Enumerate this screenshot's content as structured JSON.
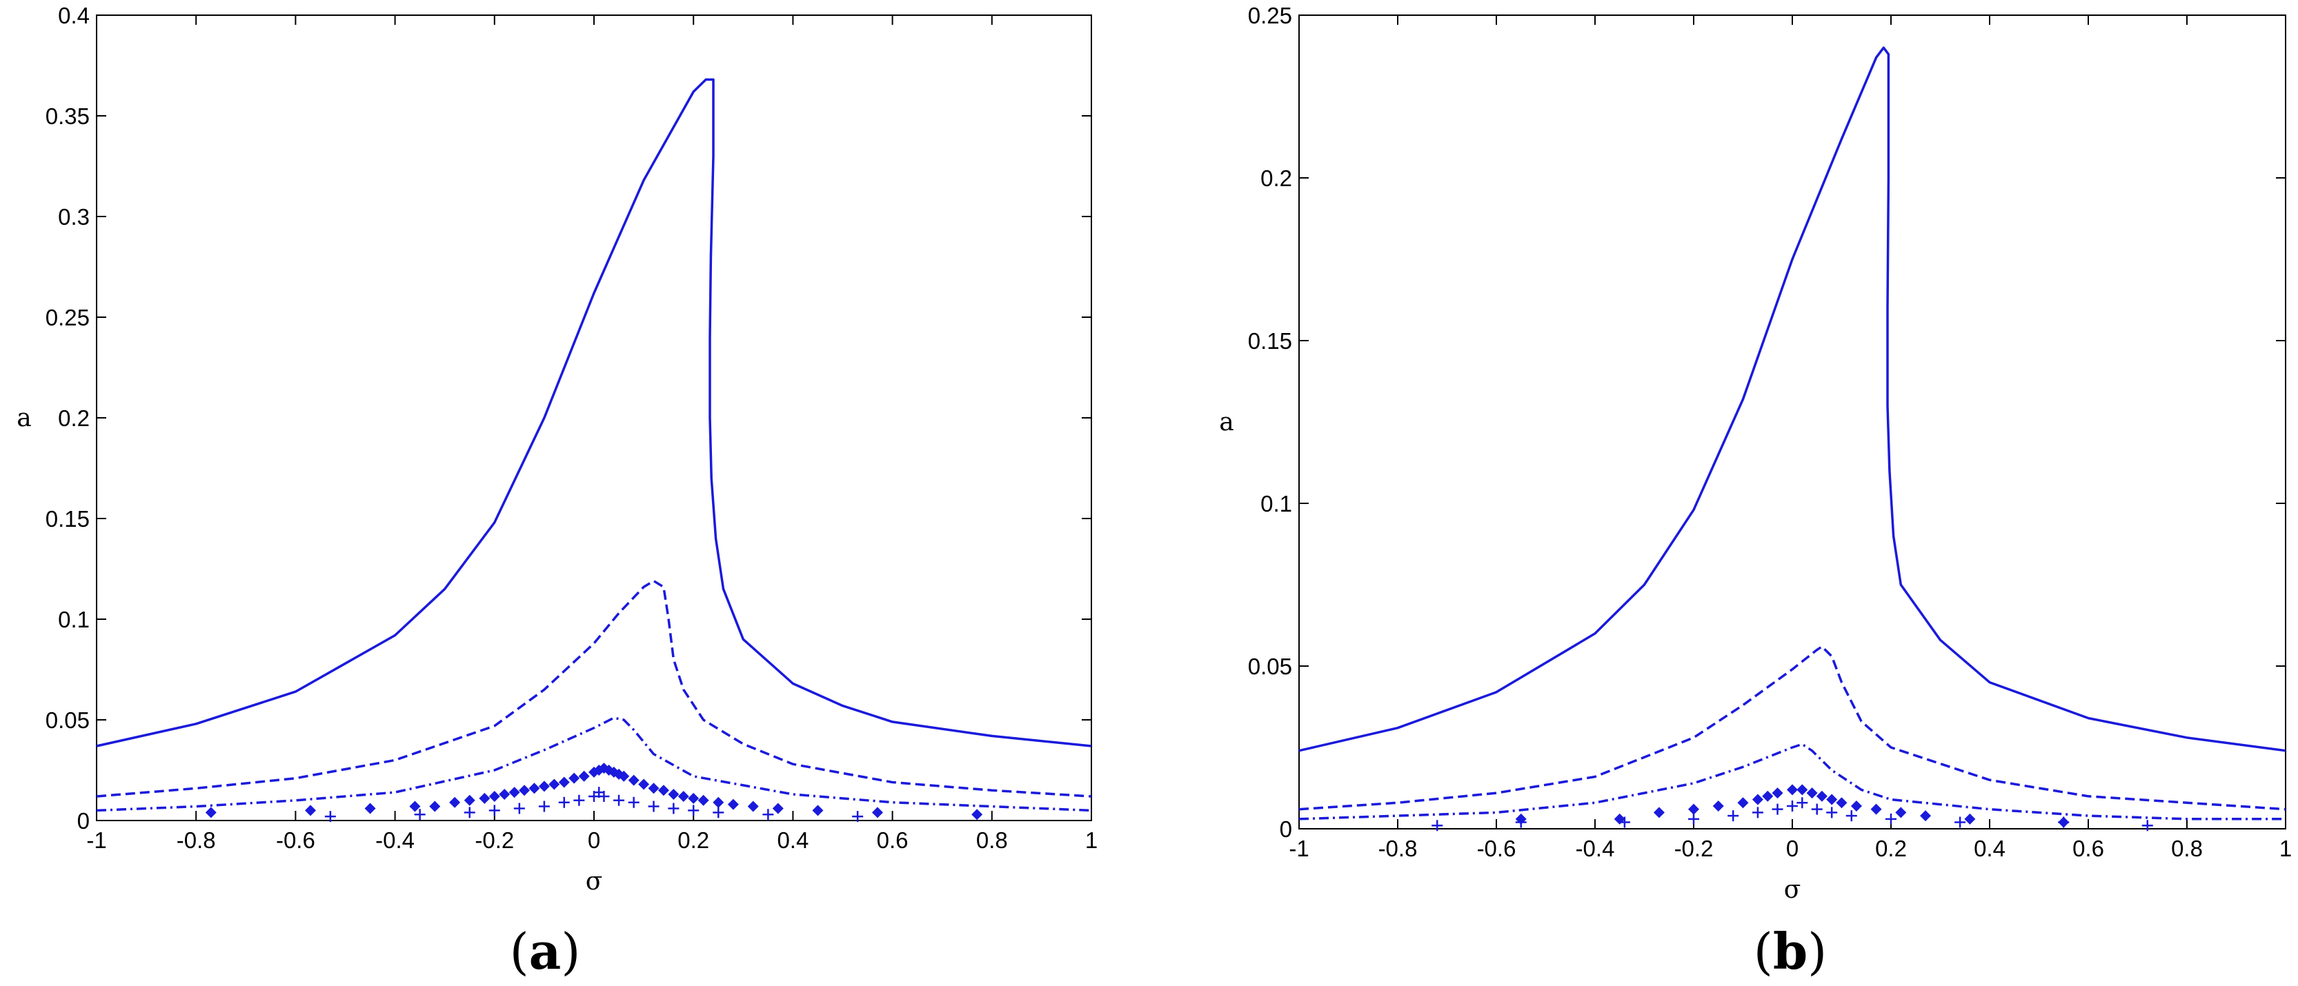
{
  "chart_data": [
    {
      "type": "line",
      "panel_label": {
        "open": "(",
        "letter": "a",
        "close": ")"
      },
      "xlabel": "σ",
      "ylabel": "a",
      "xlim": [
        -1,
        1
      ],
      "ylim": [
        0,
        0.4
      ],
      "xticks": [
        "-1",
        "-0.8",
        "-0.6",
        "-0.4",
        "-0.2",
        "0",
        "0.2",
        "0.4",
        "0.6",
        "0.8",
        "1"
      ],
      "yticks": [
        "0",
        "0.05",
        "0.1",
        "0.15",
        "0.2",
        "0.25",
        "0.3",
        "0.35",
        "0.4"
      ],
      "color": "#1a1adc",
      "series": [
        {
          "style": "solid",
          "points": [
            [
              -1,
              0.037
            ],
            [
              -0.8,
              0.048
            ],
            [
              -0.6,
              0.064
            ],
            [
              -0.4,
              0.092
            ],
            [
              -0.3,
              0.115
            ],
            [
              -0.2,
              0.148
            ],
            [
              -0.1,
              0.2
            ],
            [
              0,
              0.262
            ],
            [
              0.1,
              0.318
            ],
            [
              0.2,
              0.362
            ],
            [
              0.225,
              0.368
            ],
            [
              0.24,
              0.368
            ],
            [
              0.24,
              0.33
            ],
            [
              0.235,
              0.28
            ],
            [
              0.233,
              0.24
            ],
            [
              0.233,
              0.2
            ],
            [
              0.236,
              0.17
            ],
            [
              0.245,
              0.14
            ],
            [
              0.26,
              0.115
            ],
            [
              0.3,
              0.09
            ],
            [
              0.4,
              0.068
            ],
            [
              0.5,
              0.057
            ],
            [
              0.6,
              0.049
            ],
            [
              0.8,
              0.042
            ],
            [
              1,
              0.037
            ]
          ]
        },
        {
          "style": "dashed",
          "points": [
            [
              -1,
              0.012
            ],
            [
              -0.8,
              0.016
            ],
            [
              -0.6,
              0.021
            ],
            [
              -0.4,
              0.03
            ],
            [
              -0.2,
              0.047
            ],
            [
              -0.1,
              0.065
            ],
            [
              0,
              0.088
            ],
            [
              0.05,
              0.103
            ],
            [
              0.1,
              0.116
            ],
            [
              0.12,
              0.119
            ],
            [
              0.14,
              0.116
            ],
            [
              0.15,
              0.1
            ],
            [
              0.16,
              0.08
            ],
            [
              0.18,
              0.065
            ],
            [
              0.22,
              0.05
            ],
            [
              0.3,
              0.038
            ],
            [
              0.4,
              0.028
            ],
            [
              0.6,
              0.019
            ],
            [
              0.8,
              0.015
            ],
            [
              1,
              0.012
            ]
          ]
        },
        {
          "style": "dashdot",
          "points": [
            [
              -1,
              0.005
            ],
            [
              -0.8,
              0.007
            ],
            [
              -0.6,
              0.01
            ],
            [
              -0.4,
              0.014
            ],
            [
              -0.2,
              0.025
            ],
            [
              -0.1,
              0.035
            ],
            [
              0,
              0.046
            ],
            [
              0.04,
              0.051
            ],
            [
              0.06,
              0.05
            ],
            [
              0.08,
              0.045
            ],
            [
              0.12,
              0.033
            ],
            [
              0.2,
              0.022
            ],
            [
              0.4,
              0.013
            ],
            [
              0.6,
              0.009
            ],
            [
              0.8,
              0.007
            ],
            [
              1,
              0.005
            ]
          ]
        },
        {
          "style": "diamond",
          "points": [
            [
              -0.77,
              0.004
            ],
            [
              -0.57,
              0.005
            ],
            [
              -0.45,
              0.006
            ],
            [
              -0.36,
              0.007
            ],
            [
              -0.32,
              0.007
            ],
            [
              -0.28,
              0.009
            ],
            [
              -0.25,
              0.01
            ],
            [
              -0.22,
              0.011
            ],
            [
              -0.2,
              0.012
            ],
            [
              -0.18,
              0.013
            ],
            [
              -0.16,
              0.014
            ],
            [
              -0.14,
              0.015
            ],
            [
              -0.12,
              0.016
            ],
            [
              -0.1,
              0.017
            ],
            [
              -0.08,
              0.018
            ],
            [
              -0.06,
              0.019
            ],
            [
              -0.04,
              0.021
            ],
            [
              -0.02,
              0.022
            ],
            [
              0,
              0.024
            ],
            [
              0.01,
              0.025
            ],
            [
              0.02,
              0.026
            ],
            [
              0.03,
              0.025
            ],
            [
              0.04,
              0.024
            ],
            [
              0.05,
              0.023
            ],
            [
              0.06,
              0.022
            ],
            [
              0.08,
              0.02
            ],
            [
              0.1,
              0.018
            ],
            [
              0.12,
              0.016
            ],
            [
              0.14,
              0.015
            ],
            [
              0.16,
              0.013
            ],
            [
              0.18,
              0.012
            ],
            [
              0.2,
              0.011
            ],
            [
              0.22,
              0.01
            ],
            [
              0.25,
              0.009
            ],
            [
              0.28,
              0.008
            ],
            [
              0.32,
              0.007
            ],
            [
              0.37,
              0.006
            ],
            [
              0.45,
              0.005
            ],
            [
              0.57,
              0.004
            ],
            [
              0.77,
              0.003
            ]
          ]
        },
        {
          "style": "plus",
          "points": [
            [
              -0.53,
              0.002
            ],
            [
              -0.35,
              0.003
            ],
            [
              -0.25,
              0.004
            ],
            [
              -0.2,
              0.005
            ],
            [
              -0.15,
              0.006
            ],
            [
              -0.1,
              0.007
            ],
            [
              -0.06,
              0.009
            ],
            [
              -0.03,
              0.01
            ],
            [
              0,
              0.012
            ],
            [
              0.01,
              0.014
            ],
            [
              0.02,
              0.012
            ],
            [
              0.05,
              0.01
            ],
            [
              0.08,
              0.009
            ],
            [
              0.12,
              0.007
            ],
            [
              0.16,
              0.006
            ],
            [
              0.2,
              0.005
            ],
            [
              0.25,
              0.004
            ],
            [
              0.35,
              0.003
            ],
            [
              0.53,
              0.002
            ]
          ]
        }
      ]
    },
    {
      "type": "line",
      "panel_label": {
        "open": "(",
        "letter": "b",
        "close": ")"
      },
      "xlabel": "σ",
      "ylabel": "a",
      "xlim": [
        -1,
        1
      ],
      "ylim": [
        0,
        0.25
      ],
      "xticks": [
        "-1",
        "-0.8",
        "-0.6",
        "-0.4",
        "-0.2",
        "0",
        "0.2",
        "0.4",
        "0.6",
        "0.8",
        "1"
      ],
      "yticks": [
        "0",
        "0.05",
        "0.1",
        "0.15",
        "0.2",
        "0.25"
      ],
      "color": "#1a1adc",
      "series": [
        {
          "style": "solid",
          "points": [
            [
              -1,
              0.024
            ],
            [
              -0.8,
              0.031
            ],
            [
              -0.6,
              0.042
            ],
            [
              -0.4,
              0.06
            ],
            [
              -0.3,
              0.075
            ],
            [
              -0.2,
              0.098
            ],
            [
              -0.1,
              0.132
            ],
            [
              0,
              0.175
            ],
            [
              0.1,
              0.212
            ],
            [
              0.17,
              0.237
            ],
            [
              0.185,
              0.24
            ],
            [
              0.195,
              0.238
            ],
            [
              0.195,
              0.2
            ],
            [
              0.193,
              0.16
            ],
            [
              0.193,
              0.13
            ],
            [
              0.197,
              0.11
            ],
            [
              0.205,
              0.09
            ],
            [
              0.22,
              0.075
            ],
            [
              0.3,
              0.058
            ],
            [
              0.4,
              0.045
            ],
            [
              0.6,
              0.034
            ],
            [
              0.8,
              0.028
            ],
            [
              1,
              0.024
            ]
          ]
        },
        {
          "style": "dashed",
          "points": [
            [
              -1,
              0.006
            ],
            [
              -0.8,
              0.008
            ],
            [
              -0.6,
              0.011
            ],
            [
              -0.4,
              0.016
            ],
            [
              -0.2,
              0.028
            ],
            [
              -0.1,
              0.038
            ],
            [
              0,
              0.049
            ],
            [
              0.05,
              0.055
            ],
            [
              0.06,
              0.056
            ],
            [
              0.08,
              0.053
            ],
            [
              0.1,
              0.045
            ],
            [
              0.14,
              0.033
            ],
            [
              0.2,
              0.025
            ],
            [
              0.4,
              0.015
            ],
            [
              0.6,
              0.01
            ],
            [
              0.8,
              0.008
            ],
            [
              1,
              0.006
            ]
          ]
        },
        {
          "style": "dashdot",
          "points": [
            [
              -1,
              0.003
            ],
            [
              -0.8,
              0.004
            ],
            [
              -0.6,
              0.005
            ],
            [
              -0.4,
              0.008
            ],
            [
              -0.2,
              0.014
            ],
            [
              -0.1,
              0.019
            ],
            [
              0,
              0.025
            ],
            [
              0.02,
              0.026
            ],
            [
              0.04,
              0.024
            ],
            [
              0.08,
              0.018
            ],
            [
              0.14,
              0.012
            ],
            [
              0.2,
              0.009
            ],
            [
              0.4,
              0.006
            ],
            [
              0.6,
              0.004
            ],
            [
              0.8,
              0.003
            ],
            [
              1,
              0.003
            ]
          ]
        },
        {
          "style": "diamond",
          "points": [
            [
              -0.55,
              0.003
            ],
            [
              -0.35,
              0.003
            ],
            [
              -0.27,
              0.005
            ],
            [
              -0.2,
              0.006
            ],
            [
              -0.15,
              0.007
            ],
            [
              -0.1,
              0.008
            ],
            [
              -0.07,
              0.009
            ],
            [
              -0.05,
              0.01
            ],
            [
              -0.03,
              0.011
            ],
            [
              0,
              0.012
            ],
            [
              0.02,
              0.012
            ],
            [
              0.04,
              0.011
            ],
            [
              0.06,
              0.01
            ],
            [
              0.08,
              0.009
            ],
            [
              0.1,
              0.008
            ],
            [
              0.13,
              0.007
            ],
            [
              0.17,
              0.006
            ],
            [
              0.22,
              0.005
            ],
            [
              0.27,
              0.004
            ],
            [
              0.36,
              0.003
            ],
            [
              0.55,
              0.002
            ]
          ]
        },
        {
          "style": "plus",
          "points": [
            [
              -0.72,
              0.001
            ],
            [
              -0.55,
              0.002
            ],
            [
              -0.34,
              0.002
            ],
            [
              -0.2,
              0.003
            ],
            [
              -0.12,
              0.004
            ],
            [
              -0.07,
              0.005
            ],
            [
              -0.03,
              0.006
            ],
            [
              0,
              0.007
            ],
            [
              0.02,
              0.008
            ],
            [
              0.05,
              0.006
            ],
            [
              0.08,
              0.005
            ],
            [
              0.12,
              0.004
            ],
            [
              0.2,
              0.003
            ],
            [
              0.34,
              0.002
            ],
            [
              0.55,
              0.002
            ],
            [
              0.72,
              0.001
            ]
          ]
        }
      ]
    }
  ]
}
